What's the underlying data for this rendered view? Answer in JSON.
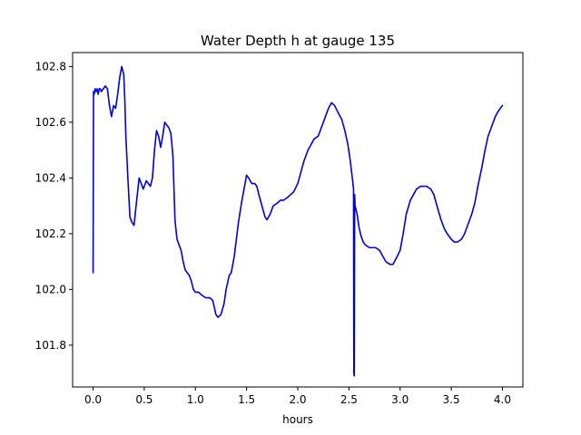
{
  "chart_data": {
    "type": "line",
    "title": "Water Depth h at gauge 135",
    "xlabel": "hours",
    "ylabel": "",
    "xlim": [
      -0.2,
      4.2
    ],
    "ylim": [
      101.65,
      102.85
    ],
    "grid": false,
    "xticks": [
      0.0,
      0.5,
      1.0,
      1.5,
      2.0,
      2.5,
      3.0,
      3.5,
      4.0
    ],
    "xtick_labels": [
      "0.0",
      "0.5",
      "1.0",
      "1.5",
      "2.0",
      "2.5",
      "3.0",
      "3.5",
      "4.0"
    ],
    "yticks": [
      101.8,
      102.0,
      102.2,
      102.4,
      102.6,
      102.8
    ],
    "ytick_labels": [
      "101.8",
      "102.0",
      "102.2",
      "102.4",
      "102.6",
      "102.8"
    ],
    "series": [
      {
        "name": "",
        "color": "#0000dd",
        "x": [
          0.0,
          0.004,
          0.01,
          0.02,
          0.03,
          0.04,
          0.05,
          0.06,
          0.07,
          0.08,
          0.1,
          0.12,
          0.14,
          0.16,
          0.18,
          0.2,
          0.22,
          0.24,
          0.26,
          0.28,
          0.3,
          0.31,
          0.32,
          0.34,
          0.36,
          0.38,
          0.4,
          0.42,
          0.45,
          0.47,
          0.49,
          0.5,
          0.52,
          0.54,
          0.56,
          0.58,
          0.6,
          0.62,
          0.64,
          0.66,
          0.68,
          0.7,
          0.72,
          0.74,
          0.76,
          0.78,
          0.8,
          0.82,
          0.84,
          0.86,
          0.88,
          0.9,
          0.92,
          0.94,
          0.96,
          0.98,
          1.0,
          1.03,
          1.06,
          1.1,
          1.14,
          1.17,
          1.2,
          1.22,
          1.25,
          1.28,
          1.3,
          1.33,
          1.35,
          1.38,
          1.4,
          1.42,
          1.45,
          1.48,
          1.5,
          1.52,
          1.55,
          1.58,
          1.6,
          1.62,
          1.65,
          1.68,
          1.7,
          1.73,
          1.76,
          1.8,
          1.83,
          1.86,
          1.9,
          1.93,
          1.96,
          2.0,
          2.03,
          2.06,
          2.1,
          2.13,
          2.16,
          2.2,
          2.23,
          2.26,
          2.3,
          2.33,
          2.36,
          2.4,
          2.43,
          2.46,
          2.49,
          2.51,
          2.53,
          2.545,
          2.548,
          2.552,
          2.556,
          2.56,
          2.58,
          2.6,
          2.62,
          2.64,
          2.66,
          2.7,
          2.73,
          2.76,
          2.8,
          2.83,
          2.86,
          2.9,
          2.93,
          2.96,
          3.0,
          3.03,
          3.06,
          3.1,
          3.13,
          3.16,
          3.2,
          3.23,
          3.26,
          3.3,
          3.33,
          3.36,
          3.4,
          3.43,
          3.46,
          3.5,
          3.53,
          3.56,
          3.6,
          3.63,
          3.66,
          3.7,
          3.73,
          3.76,
          3.8,
          3.83,
          3.86,
          3.9,
          3.93,
          3.96,
          4.0
        ],
        "y": [
          102.06,
          102.71,
          102.7,
          102.72,
          102.71,
          102.72,
          102.7,
          102.72,
          102.72,
          102.71,
          102.72,
          102.73,
          102.72,
          102.66,
          102.62,
          102.66,
          102.65,
          102.7,
          102.76,
          102.8,
          102.77,
          102.68,
          102.55,
          102.4,
          102.26,
          102.24,
          102.23,
          102.3,
          102.4,
          102.38,
          102.36,
          102.37,
          102.39,
          102.38,
          102.37,
          102.4,
          102.5,
          102.57,
          102.55,
          102.51,
          102.55,
          102.6,
          102.59,
          102.58,
          102.56,
          102.48,
          102.25,
          102.18,
          102.16,
          102.14,
          102.1,
          102.07,
          102.06,
          102.05,
          102.03,
          102.0,
          101.99,
          101.99,
          101.98,
          101.97,
          101.97,
          101.96,
          101.91,
          101.9,
          101.91,
          101.95,
          102.0,
          102.05,
          102.06,
          102.12,
          102.18,
          102.24,
          102.31,
          102.37,
          102.41,
          102.4,
          102.38,
          102.38,
          102.37,
          102.34,
          102.3,
          102.26,
          102.25,
          102.27,
          102.3,
          102.31,
          102.32,
          102.32,
          102.33,
          102.34,
          102.35,
          102.38,
          102.42,
          102.46,
          102.5,
          102.52,
          102.54,
          102.55,
          102.58,
          102.61,
          102.65,
          102.67,
          102.66,
          102.63,
          102.61,
          102.57,
          102.52,
          102.47,
          102.41,
          102.36,
          101.7,
          101.69,
          102.34,
          102.3,
          102.27,
          102.22,
          102.19,
          102.17,
          102.16,
          102.15,
          102.15,
          102.15,
          102.14,
          102.12,
          102.1,
          102.09,
          102.09,
          102.11,
          102.14,
          102.2,
          102.27,
          102.32,
          102.34,
          102.36,
          102.37,
          102.37,
          102.37,
          102.36,
          102.34,
          102.3,
          102.25,
          102.22,
          102.2,
          102.18,
          102.17,
          102.17,
          102.18,
          102.2,
          102.23,
          102.27,
          102.31,
          102.37,
          102.44,
          102.5,
          102.55,
          102.59,
          102.62,
          102.64,
          102.66
        ]
      }
    ]
  }
}
